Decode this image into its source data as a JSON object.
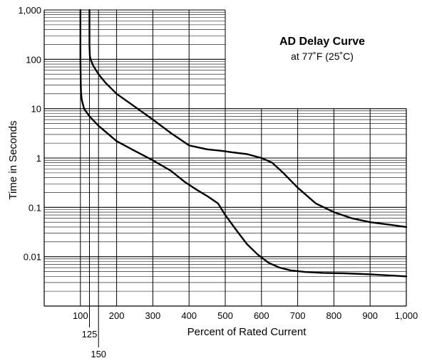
{
  "chart_data": {
    "type": "line",
    "title": "AD Delay Curve",
    "subtitle": "at 77˚F (25˚C)",
    "xlabel": "Percent of Rated Current",
    "ylabel": "Time in Seconds",
    "x_scale": "linear",
    "y_scale": "log",
    "xlim": [
      0,
      1000
    ],
    "ylim": [
      0.001,
      1000
    ],
    "x_ticks": [
      {
        "value": 100,
        "label": "100"
      },
      {
        "value": 200,
        "label": "200"
      },
      {
        "value": 300,
        "label": "300"
      },
      {
        "value": 400,
        "label": "400"
      },
      {
        "value": 500,
        "label": "500"
      },
      {
        "value": 600,
        "label": "600"
      },
      {
        "value": 700,
        "label": "700"
      },
      {
        "value": 800,
        "label": "800"
      },
      {
        "value": 900,
        "label": "900"
      },
      {
        "value": 1000,
        "label": "1,000"
      }
    ],
    "x_extra_ticks": [
      {
        "value": 125,
        "label": "125"
      },
      {
        "value": 150,
        "label": "150"
      }
    ],
    "y_ticks": [
      {
        "value": 1000,
        "label": "1,000"
      },
      {
        "value": 100,
        "label": "100"
      },
      {
        "value": 10,
        "label": "10"
      },
      {
        "value": 1,
        "label": "1"
      },
      {
        "value": 0.1,
        "label": "0.1"
      },
      {
        "value": 0.01,
        "label": "0.01"
      }
    ],
    "grid": true,
    "grid_upper_region_x_max": 500,
    "series": [
      {
        "x": [
          100,
          100,
          100,
          100.5,
          101,
          102,
          104,
          110,
          125,
          150,
          200,
          250,
          300,
          350,
          390,
          420,
          450,
          480,
          500,
          530,
          560,
          590,
          620,
          650,
          680,
          720,
          770,
          830,
          900,
          1000
        ],
        "y": [
          1000,
          300,
          100,
          50,
          30,
          20,
          15,
          10,
          7,
          4.5,
          2.2,
          1.4,
          0.9,
          0.55,
          0.32,
          0.23,
          0.17,
          0.12,
          0.07,
          0.035,
          0.018,
          0.011,
          0.0075,
          0.006,
          0.0053,
          0.0049,
          0.0047,
          0.0046,
          0.0044,
          0.004
        ]
      },
      {
        "x": [
          125,
          125,
          125,
          126,
          128,
          135,
          150,
          170,
          200,
          250,
          300,
          350,
          400,
          450,
          490,
          520,
          560,
          600,
          630,
          660,
          700,
          750,
          800,
          850,
          900,
          950,
          1000
        ],
        "y": [
          1000,
          400,
          200,
          120,
          100,
          75,
          50,
          33,
          20,
          11,
          6,
          3.2,
          1.8,
          1.5,
          1.4,
          1.3,
          1.2,
          1.0,
          0.8,
          0.5,
          0.25,
          0.12,
          0.08,
          0.06,
          0.05,
          0.045,
          0.04
        ]
      }
    ]
  }
}
